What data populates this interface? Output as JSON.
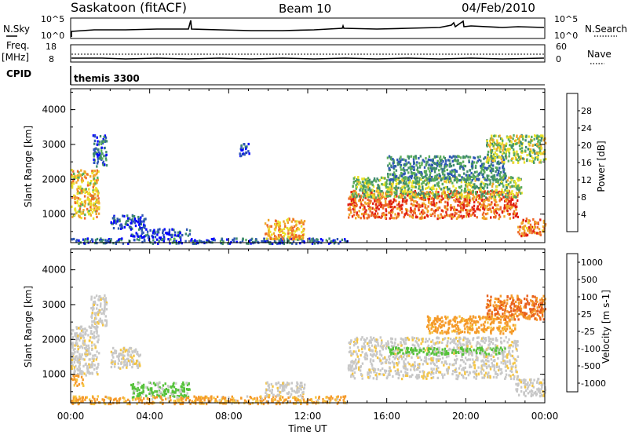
{
  "header": {
    "station": "Saskatoon (fitACF)",
    "beam": "Beam 10",
    "date": "04/Feb/2010"
  },
  "top_panels": {
    "nsky_label": "N.Sky",
    "nsky_ticks": [
      "10^5",
      "10^0"
    ],
    "nsearch_label": "N.Search",
    "nsearch_ticks": [
      "10^5",
      "10^0"
    ],
    "freq_label": "Freq.",
    "freq_unit": "[MHz]",
    "freq_ticks": [
      "18",
      "8"
    ],
    "nave_label": "Nave",
    "nave_ticks": [
      "60",
      "0"
    ],
    "cpid_label": "CPID",
    "cpid_value": "themis 3300"
  },
  "chart_data": [
    {
      "type": "heatmap",
      "name": "power",
      "ylabel": "Slant Range [km]",
      "ylim": [
        180,
        4600
      ],
      "yticks": [
        1000,
        2000,
        3000,
        4000
      ],
      "ytick_labels": [
        "1000",
        "2000",
        "3000",
        "4000"
      ],
      "xlim": [
        0,
        24
      ],
      "colorbar": {
        "label": "Power [dB]",
        "range": [
          0,
          32
        ],
        "tick_values": [
          4,
          8,
          12,
          16,
          20,
          24,
          28
        ],
        "tick_labels": [
          "4",
          "8",
          "12",
          "16",
          "20",
          "24",
          "28"
        ],
        "colors": [
          "#0000ff",
          "#2d56b5",
          "#3f8a6e",
          "#5aad5a",
          "#eae12a",
          "#f0a62a",
          "#ee6a2a",
          "#e01f12"
        ]
      },
      "regions": [
        {
          "t0": 0.0,
          "t1": 1.4,
          "r0": 900,
          "r1": 2300,
          "value": 20
        },
        {
          "t0": 1.1,
          "t1": 1.8,
          "r0": 2400,
          "r1": 3300,
          "value": 8
        },
        {
          "t0": 2.0,
          "t1": 3.8,
          "r0": 600,
          "r1": 1000,
          "value": 6
        },
        {
          "t0": 3.0,
          "t1": 6.0,
          "r0": 350,
          "r1": 600,
          "value": 5
        },
        {
          "t0": 0.0,
          "t1": 14.0,
          "r0": 180,
          "r1": 330,
          "value": 7
        },
        {
          "t0": 9.8,
          "t1": 11.8,
          "r0": 300,
          "r1": 900,
          "value": 22
        },
        {
          "t0": 14.0,
          "t1": 22.6,
          "r0": 900,
          "r1": 1700,
          "value": 26
        },
        {
          "t0": 14.2,
          "t1": 22.8,
          "r0": 1500,
          "r1": 2100,
          "value": 15
        },
        {
          "t0": 16.0,
          "t1": 22.0,
          "r0": 2000,
          "r1": 2700,
          "value": 10
        },
        {
          "t0": 21.0,
          "t1": 24.0,
          "r0": 2500,
          "r1": 3300,
          "value": 16
        },
        {
          "t0": 22.6,
          "t1": 24.0,
          "r0": 400,
          "r1": 900,
          "value": 25
        },
        {
          "t0": 8.5,
          "t1": 9.0,
          "r0": 2700,
          "r1": 3100,
          "value": 6
        }
      ]
    },
    {
      "type": "heatmap",
      "name": "velocity",
      "ylabel": "Slant Range [km]",
      "ylim": [
        180,
        4600
      ],
      "yticks": [
        1000,
        2000,
        3000,
        4000
      ],
      "ytick_labels": [
        "1000",
        "2000",
        "3000",
        "4000"
      ],
      "xlim": [
        0,
        24
      ],
      "xlabel": "Time UT",
      "xtick_values": [
        0,
        4,
        8,
        12,
        16,
        20,
        24
      ],
      "xtick_labels": [
        "00:00",
        "04:00",
        "08:00",
        "12:00",
        "16:00",
        "20:00",
        "00:00"
      ],
      "colorbar": {
        "label": "Velocity [m s-1]",
        "tick_values": [
          1000,
          500,
          100,
          25,
          -25,
          -100,
          -500,
          -1000
        ],
        "tick_labels": [
          "1000",
          "500",
          "100",
          "25",
          "-25",
          "-100",
          "-500",
          "-1000"
        ],
        "colors": [
          "#1f3fb8",
          "#2f7f6a",
          "#55c23a",
          "#c8c8c8",
          "#f5c542",
          "#f59a2a",
          "#e8601c",
          "#e01010"
        ]
      },
      "regions": [
        {
          "t0": 0.0,
          "t1": 1.4,
          "r0": 1000,
          "r1": 2400,
          "value": 0
        },
        {
          "t0": 0.0,
          "t1": 0.6,
          "r0": 700,
          "r1": 1000,
          "value": -110
        },
        {
          "t0": 1.0,
          "t1": 1.8,
          "r0": 2400,
          "r1": 3300,
          "value": 0
        },
        {
          "t0": 2.0,
          "t1": 3.5,
          "r0": 1200,
          "r1": 1800,
          "value": 0
        },
        {
          "t0": 3.0,
          "t1": 6.0,
          "r0": 350,
          "r1": 800,
          "value": 110
        },
        {
          "t0": 0.0,
          "t1": 14.0,
          "r0": 180,
          "r1": 400,
          "value": -80
        },
        {
          "t0": 9.8,
          "t1": 11.8,
          "r0": 400,
          "r1": 800,
          "value": 0
        },
        {
          "t0": 14.0,
          "t1": 22.6,
          "r0": 900,
          "r1": 2100,
          "value": 0
        },
        {
          "t0": 16.0,
          "t1": 22.0,
          "r0": 1600,
          "r1": 1800,
          "value": 150
        },
        {
          "t0": 18.0,
          "t1": 22.5,
          "r0": 2200,
          "r1": 2700,
          "value": -110
        },
        {
          "t0": 21.0,
          "t1": 24.0,
          "r0": 2600,
          "r1": 3300,
          "value": -300
        },
        {
          "t0": 22.5,
          "t1": 24.0,
          "r0": 400,
          "r1": 900,
          "value": 0
        }
      ]
    }
  ]
}
